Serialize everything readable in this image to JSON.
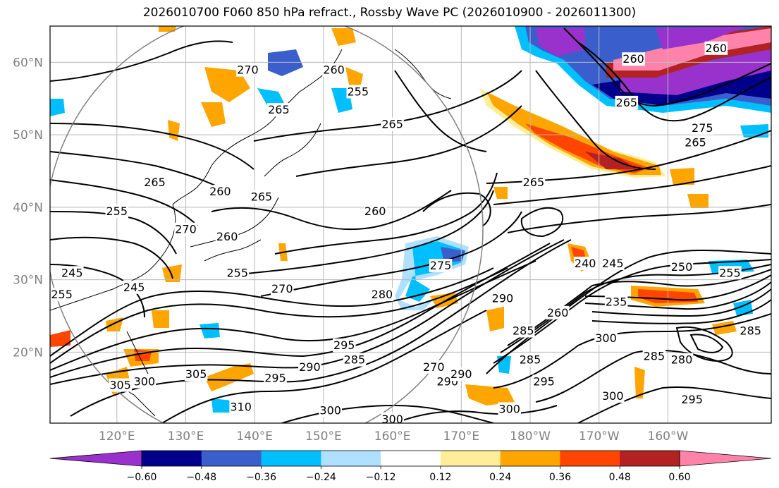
{
  "title": "2026010700 F060 850 hPa refract., Rossby Wave PC (2026010900 - 2026011300)",
  "chart_data": {
    "type": "heatmap",
    "title": "2026010700 F060 850 hPa refract., Rossby Wave PC (2026010900 - 2026011300)",
    "lon_ticks": [
      "120°E",
      "130°E",
      "140°E",
      "150°E",
      "160°E",
      "170°E",
      "180°W",
      "170°W",
      "160°W"
    ],
    "lat_ticks": [
      "60°N",
      "50°N",
      "40°N",
      "30°N",
      "20°N"
    ],
    "colorbar": {
      "levels": [
        "−0.60",
        "−0.48",
        "−0.36",
        "−0.24",
        "−0.12",
        "0.12",
        "0.24",
        "0.36",
        "0.48",
        "0.60"
      ],
      "colors": [
        "#9932cc",
        "#00008b",
        "#3a5fcd",
        "#00bfff",
        "#b0e0ff",
        "#ffffff",
        "#ffee99",
        "#ffa500",
        "#ff4500",
        "#b22222",
        "#ff82ab"
      ],
      "extend": "both"
    },
    "contour_labels": [
      {
        "text": "265",
        "lon": 125.5,
        "lat": 43.5
      },
      {
        "text": "260",
        "lon": 135.0,
        "lat": 42.2
      },
      {
        "text": "255",
        "lon": 120.0,
        "lat": 39.5
      },
      {
        "text": "265",
        "lon": 141.0,
        "lat": 41.5
      },
      {
        "text": "260",
        "lon": 136.0,
        "lat": 36.0
      },
      {
        "text": "255",
        "lon": 137.5,
        "lat": 31.0
      },
      {
        "text": "270",
        "lon": 144.0,
        "lat": 28.8
      },
      {
        "text": "275",
        "lon": 167.0,
        "lat": 32.0
      },
      {
        "text": "280",
        "lon": 158.5,
        "lat": 28.0
      },
      {
        "text": "290",
        "lon": 176.0,
        "lat": 27.5
      },
      {
        "text": "295",
        "lon": 153.0,
        "lat": 21.0
      },
      {
        "text": "285",
        "lon": 154.5,
        "lat": 19.0
      },
      {
        "text": "290",
        "lon": 148.0,
        "lat": 18.0
      },
      {
        "text": "305",
        "lon": 131.5,
        "lat": 17.0
      },
      {
        "text": "305",
        "lon": 120.5,
        "lat": 15.5
      },
      {
        "text": "300",
        "lon": 124.0,
        "lat": 16.0
      },
      {
        "text": "295",
        "lon": 143.0,
        "lat": 16.5
      },
      {
        "text": "310",
        "lon": 138.0,
        "lat": 12.5
      },
      {
        "text": "300",
        "lon": 151.0,
        "lat": 12.0
      },
      {
        "text": "300",
        "lon": 160.0,
        "lat": 10.8
      },
      {
        "text": "265",
        "lon": 180.5,
        "lat": 43.5
      },
      {
        "text": "265",
        "lon": 160.0,
        "lat": 51.5
      },
      {
        "text": "260",
        "lon": 157.5,
        "lat": 39.5
      },
      {
        "text": "255",
        "lon": 155.0,
        "lat": 56.0
      },
      {
        "text": "260",
        "lon": 151.5,
        "lat": 59.0
      },
      {
        "text": "270",
        "lon": 139.0,
        "lat": 59.0
      },
      {
        "text": "265",
        "lon": 143.5,
        "lat": 53.5
      },
      {
        "text": "260",
        "lon": 195.0,
        "lat": 60.5
      },
      {
        "text": "260",
        "lon": 207.0,
        "lat": 62.0
      },
      {
        "text": "265",
        "lon": 194.0,
        "lat": 54.5
      },
      {
        "text": "275",
        "lon": 205.0,
        "lat": 51.0
      },
      {
        "text": "265",
        "lon": 204.0,
        "lat": 49.0
      },
      {
        "text": "240",
        "lon": 188.0,
        "lat": 32.3
      },
      {
        "text": "245",
        "lon": 192.0,
        "lat": 32.3
      },
      {
        "text": "250",
        "lon": 202.0,
        "lat": 31.8
      },
      {
        "text": "255",
        "lon": 209.0,
        "lat": 31.0
      },
      {
        "text": "235",
        "lon": 192.5,
        "lat": 27.0
      },
      {
        "text": "260",
        "lon": 184.0,
        "lat": 25.5
      },
      {
        "text": "285",
        "lon": 179.0,
        "lat": 23.0
      },
      {
        "text": "300",
        "lon": 191.0,
        "lat": 22.0
      },
      {
        "text": "285",
        "lon": 198.0,
        "lat": 19.5
      },
      {
        "text": "280",
        "lon": 202.0,
        "lat": 19.0
      },
      {
        "text": "295",
        "lon": 203.5,
        "lat": 13.5
      },
      {
        "text": "300",
        "lon": 192.0,
        "lat": 14.0
      },
      {
        "text": "295",
        "lon": 182.0,
        "lat": 16.0
      },
      {
        "text": "300",
        "lon": 177.0,
        "lat": 12.2
      },
      {
        "text": "285",
        "lon": 180.0,
        "lat": 19.0
      },
      {
        "text": "290",
        "lon": 168.0,
        "lat": 16.0
      },
      {
        "text": "290",
        "lon": 170.0,
        "lat": 17.0
      },
      {
        "text": "270",
        "lon": 166.0,
        "lat": 18.0
      },
      {
        "text": "285",
        "lon": 212.0,
        "lat": 23.0
      },
      {
        "text": "245",
        "lon": 113.5,
        "lat": 31.0
      },
      {
        "text": "255",
        "lon": 112.0,
        "lat": 28.0
      },
      {
        "text": "245",
        "lon": 122.5,
        "lat": 29.0
      },
      {
        "text": "270",
        "lon": 130.0,
        "lat": 37.0
      }
    ]
  }
}
